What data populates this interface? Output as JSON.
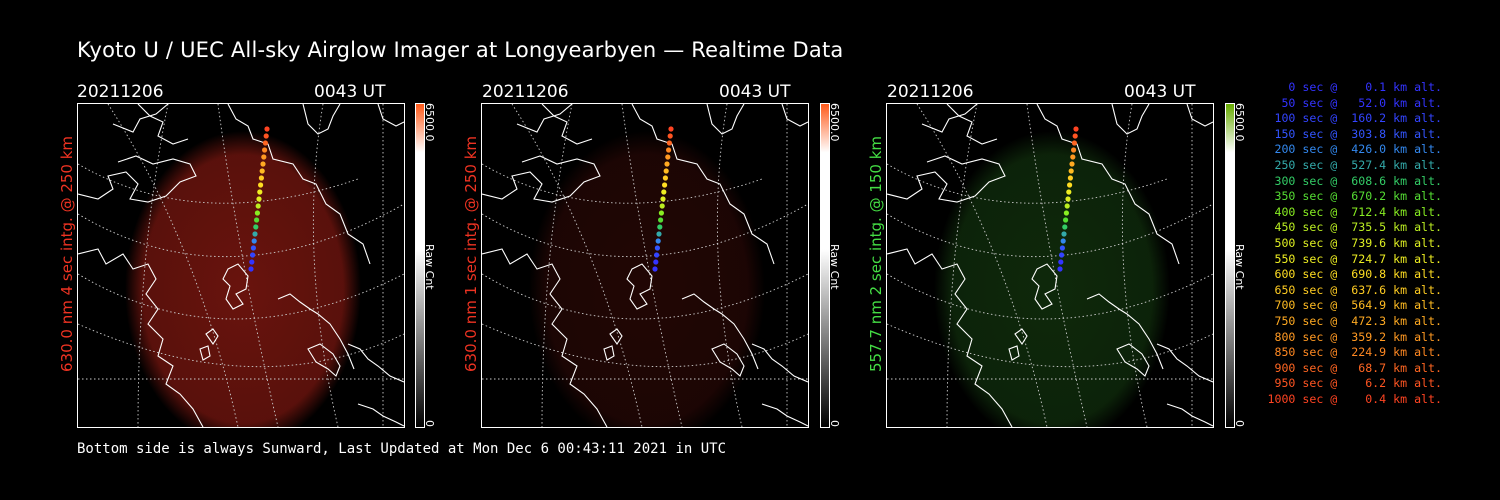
{
  "header": {
    "title": "Kyoto U / UEC All-sky Airglow Imager at Longyearbyen — Realtime Data"
  },
  "panels": [
    {
      "date": "20211206",
      "time": "0043 UT",
      "side_label": "630.0 nm 4 sec intg. @ 250 km",
      "side_color": "#ee3322",
      "cbar_max": "6500.0",
      "cbar_unit": "Raw Cnt",
      "cbar_min": "0",
      "cbar_top_color": "#ff5a1a",
      "glow_color": "#8c1a12",
      "glow_opacity": 0.75
    },
    {
      "date": "20211206",
      "time": "0043 UT",
      "side_label": "630.0 nm 1 sec intg. @ 250 km",
      "side_color": "#ee3322",
      "cbar_max": "6500.0",
      "cbar_unit": "Raw Cnt",
      "cbar_min": "0",
      "cbar_top_color": "#ff5a1a",
      "glow_color": "#4a0e0a",
      "glow_opacity": 0.45
    },
    {
      "date": "20211206",
      "time": "0043 UT",
      "side_label": "557.7 nm 2 sec intg. @ 150 km",
      "side_color": "#44dd44",
      "cbar_max": "6500.0",
      "cbar_unit": "Raw Cnt",
      "cbar_min": "0",
      "cbar_top_color": "#66aa00",
      "glow_color": "#1a4a14",
      "glow_opacity": 0.55
    }
  ],
  "legend": [
    {
      "text": "   0 sec @    0.1 km alt.",
      "color": "#3333ff"
    },
    {
      "text": "  50 sec @   52.0 km alt.",
      "color": "#3333ff"
    },
    {
      "text": " 100 sec @  160.2 km alt.",
      "color": "#3344ff"
    },
    {
      "text": " 150 sec @  303.8 km alt.",
      "color": "#3355ff"
    },
    {
      "text": " 200 sec @  426.0 km alt.",
      "color": "#3388ee"
    },
    {
      "text": " 250 sec @  527.4 km alt.",
      "color": "#33aaaa"
    },
    {
      "text": " 300 sec @  608.6 km alt.",
      "color": "#33cc66"
    },
    {
      "text": " 350 sec @  670.2 km alt.",
      "color": "#55dd33"
    },
    {
      "text": " 400 sec @  712.4 km alt.",
      "color": "#88ee22"
    },
    {
      "text": " 450 sec @  735.5 km alt.",
      "color": "#bbee22"
    },
    {
      "text": " 500 sec @  739.6 km alt.",
      "color": "#ddee22"
    },
    {
      "text": " 550 sec @  724.7 km alt.",
      "color": "#eeee22"
    },
    {
      "text": " 600 sec @  690.8 km alt.",
      "color": "#ffdd22"
    },
    {
      "text": " 650 sec @  637.6 km alt.",
      "color": "#ffcc22"
    },
    {
      "text": " 700 sec @  564.9 km alt.",
      "color": "#ffbb22"
    },
    {
      "text": " 750 sec @  472.3 km alt.",
      "color": "#ffaa22"
    },
    {
      "text": " 800 sec @  359.2 km alt.",
      "color": "#ff9922"
    },
    {
      "text": " 850 sec @  224.9 km alt.",
      "color": "#ff8822"
    },
    {
      "text": " 900 sec @   68.7 km alt.",
      "color": "#ff6622"
    },
    {
      "text": " 950 sec @    6.2 km alt.",
      "color": "#ff5522"
    },
    {
      "text": "1000 sec @    0.4 km alt.",
      "color": "#ff4422"
    }
  ],
  "footer": "Bottom side is always Sunward, Last Updated at Mon Dec  6 00:43:11 2021 in UTC"
}
